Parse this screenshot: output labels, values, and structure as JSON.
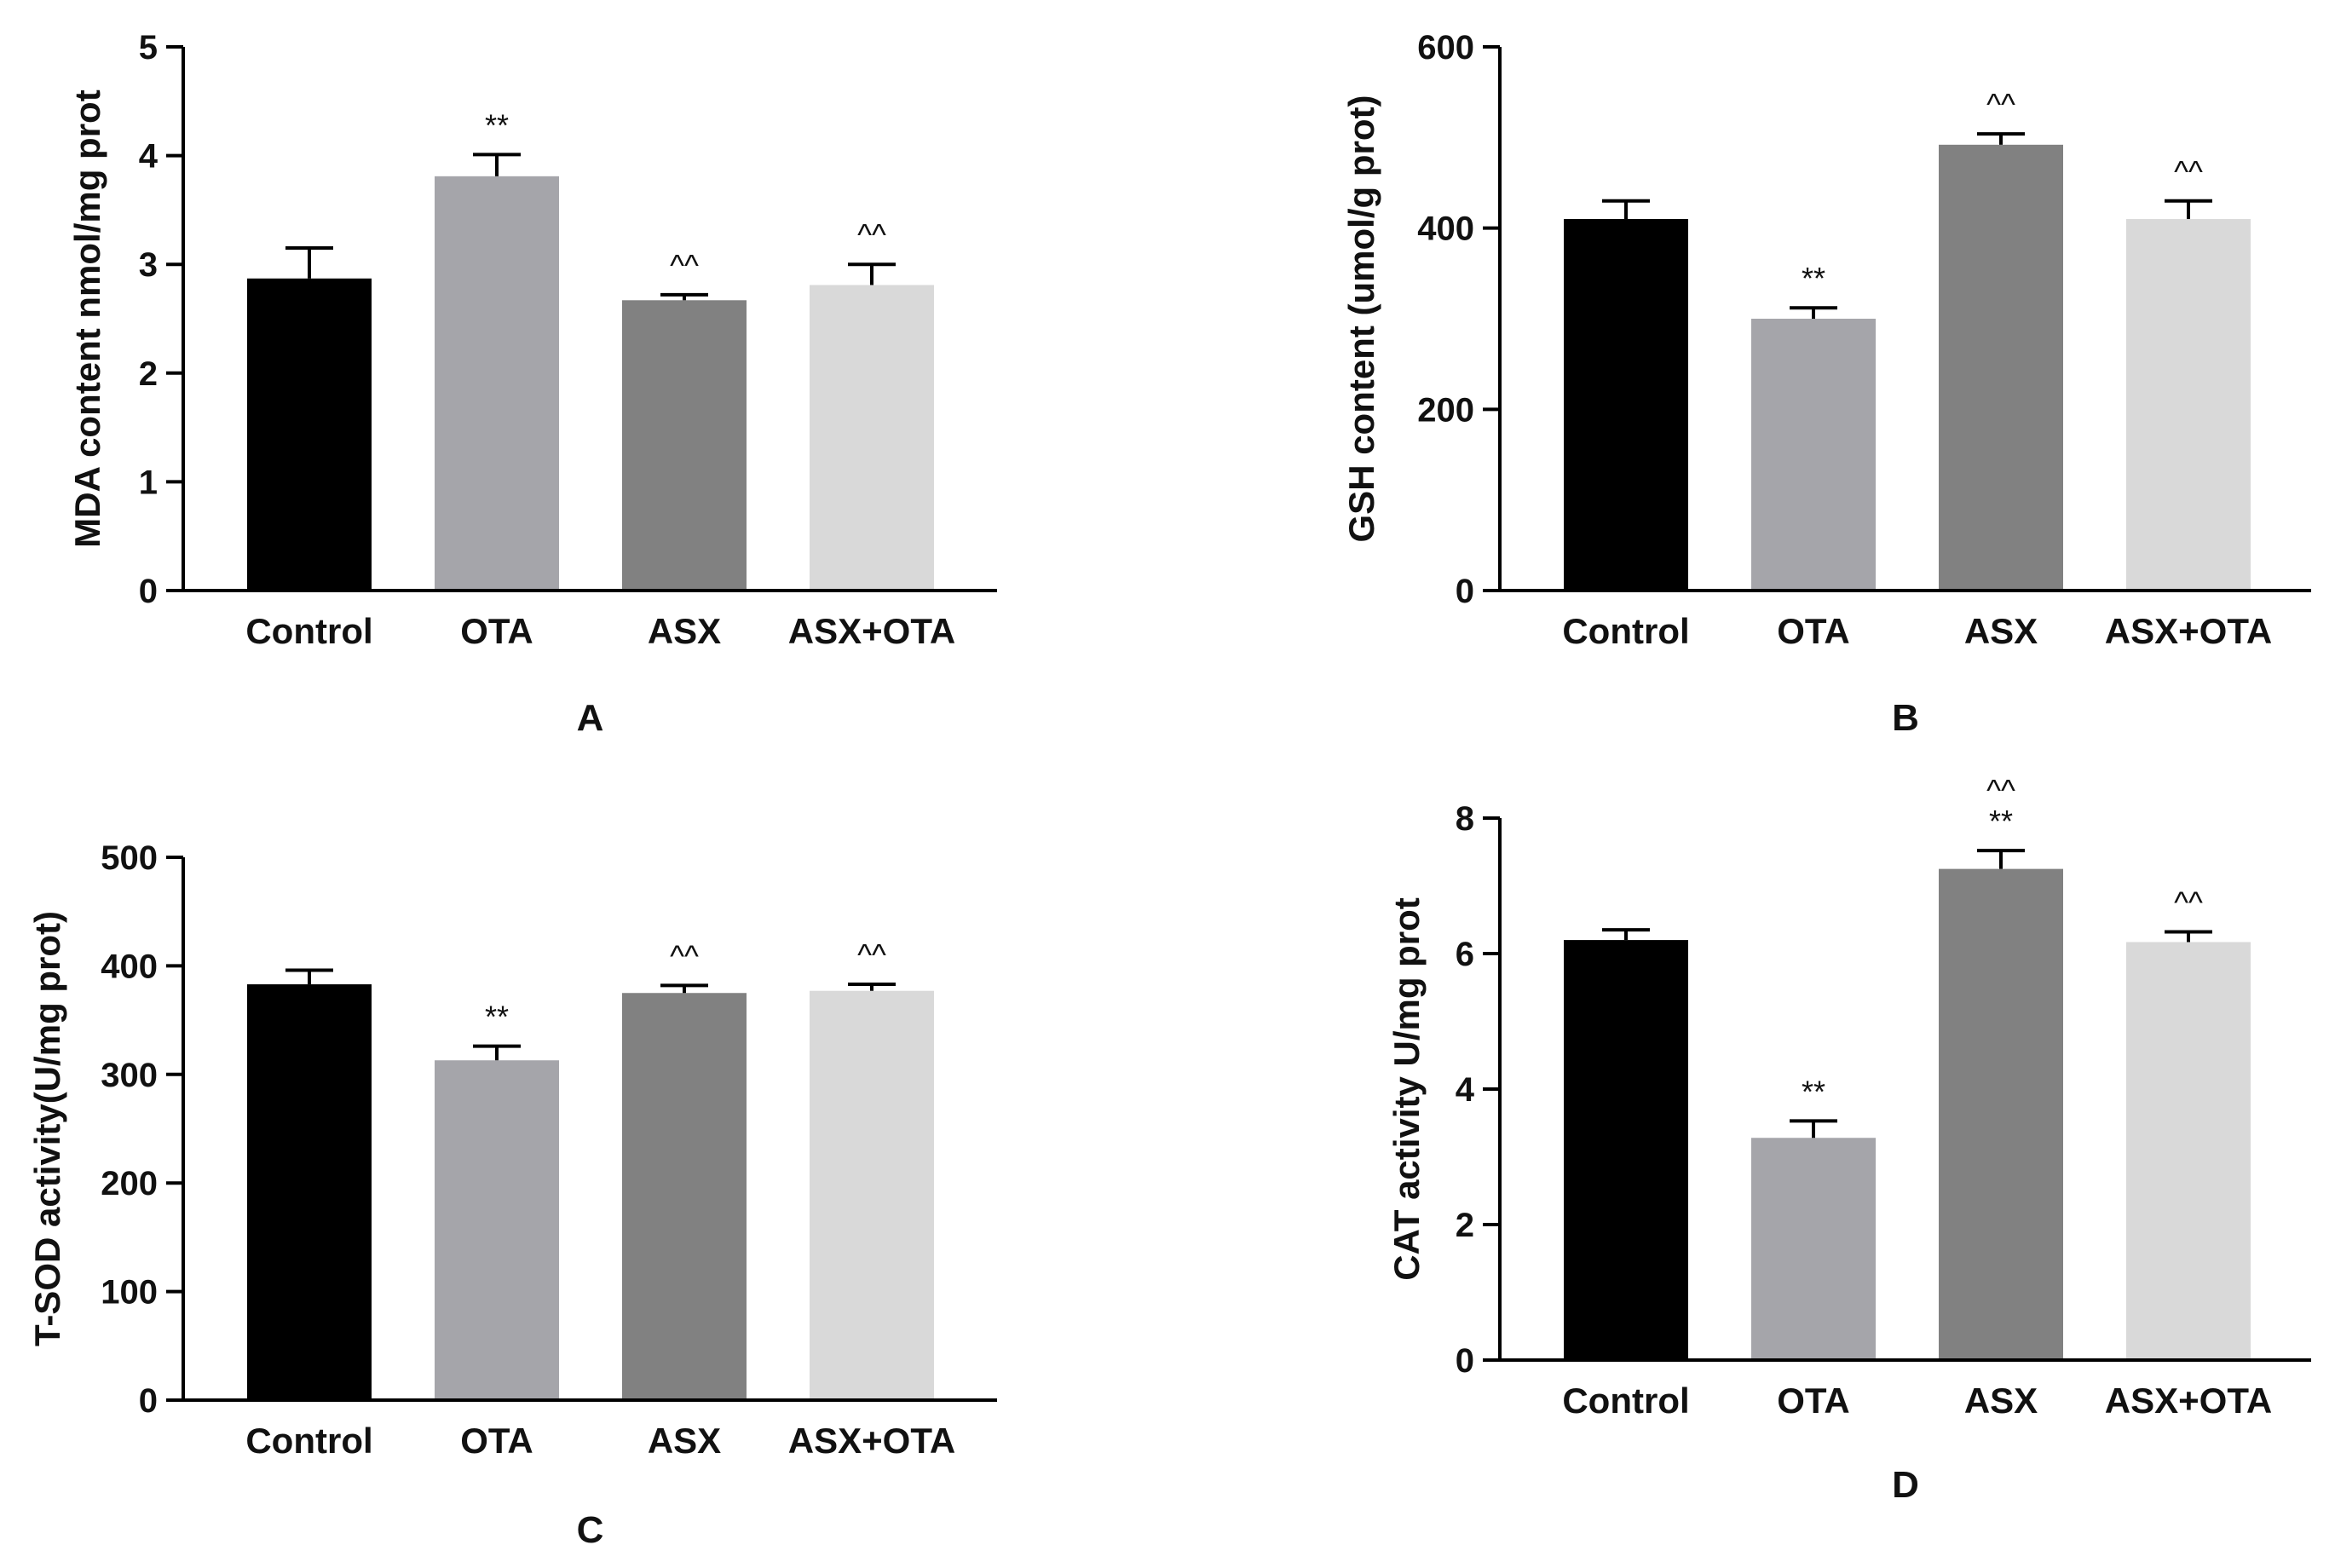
{
  "chart_data": [
    {
      "type": "bar",
      "panel_label": "A",
      "ylabel": "MDA content nmol/mg prot",
      "categories": [
        "Control",
        "OTA",
        "ASX",
        "ASX+OTA"
      ],
      "values": [
        2.87,
        3.81,
        2.67,
        2.81
      ],
      "errors": [
        0.28,
        0.2,
        0.05,
        0.19
      ],
      "annotations": [
        "",
        "**",
        "^^",
        "^^"
      ],
      "ylim": [
        0,
        5
      ],
      "yticks": [
        "0",
        "1",
        "2",
        "3",
        "4",
        "5"
      ],
      "bar_colors": [
        "#000000",
        "#a5a5aa",
        "#818181",
        "#d9d9d9"
      ]
    },
    {
      "type": "bar",
      "panel_label": "B",
      "ylabel": "GSH content (umol/g prot)",
      "categories": [
        "Control",
        "OTA",
        "ASX",
        "ASX+OTA"
      ],
      "values": [
        410,
        300,
        492,
        410
      ],
      "errors": [
        20,
        12,
        12,
        20
      ],
      "annotations": [
        "",
        "**",
        "^^",
        "^^"
      ],
      "ylim": [
        0,
        600
      ],
      "yticks": [
        "0",
        "200",
        "400",
        "600"
      ],
      "bar_colors": [
        "#000000",
        "#a5a5aa",
        "#818181",
        "#d9d9d9"
      ]
    },
    {
      "type": "bar",
      "panel_label": "C",
      "ylabel": "T-SOD activity(U/mg prot)",
      "categories": [
        "Control",
        "OTA",
        "ASX",
        "ASX+OTA"
      ],
      "values": [
        383,
        313,
        375,
        377
      ],
      "errors": [
        13,
        13,
        7,
        6
      ],
      "annotations": [
        "",
        "**",
        "^^",
        "^^"
      ],
      "ylim": [
        0,
        500
      ],
      "yticks": [
        "0",
        "100",
        "200",
        "300",
        "400",
        "500"
      ],
      "bar_colors": [
        "#000000",
        "#a5a5aa",
        "#818181",
        "#d9d9d9"
      ]
    },
    {
      "type": "bar",
      "panel_label": "D",
      "ylabel": "CAT activity U/mg prot",
      "categories": [
        "Control",
        "OTA",
        "ASX",
        "ASX+OTA"
      ],
      "values": [
        6.2,
        3.28,
        7.25,
        6.17
      ],
      "errors": [
        0.15,
        0.25,
        0.27,
        0.15
      ],
      "annotations": [
        "",
        "**",
        "**",
        "^^"
      ],
      "annotations_top": [
        "",
        "",
        "^^",
        ""
      ],
      "ylim": [
        0,
        8
      ],
      "yticks": [
        "0",
        "2",
        "4",
        "6",
        "8"
      ],
      "bar_colors": [
        "#000000",
        "#a5a5aa",
        "#818181",
        "#d9d9d9"
      ]
    }
  ]
}
